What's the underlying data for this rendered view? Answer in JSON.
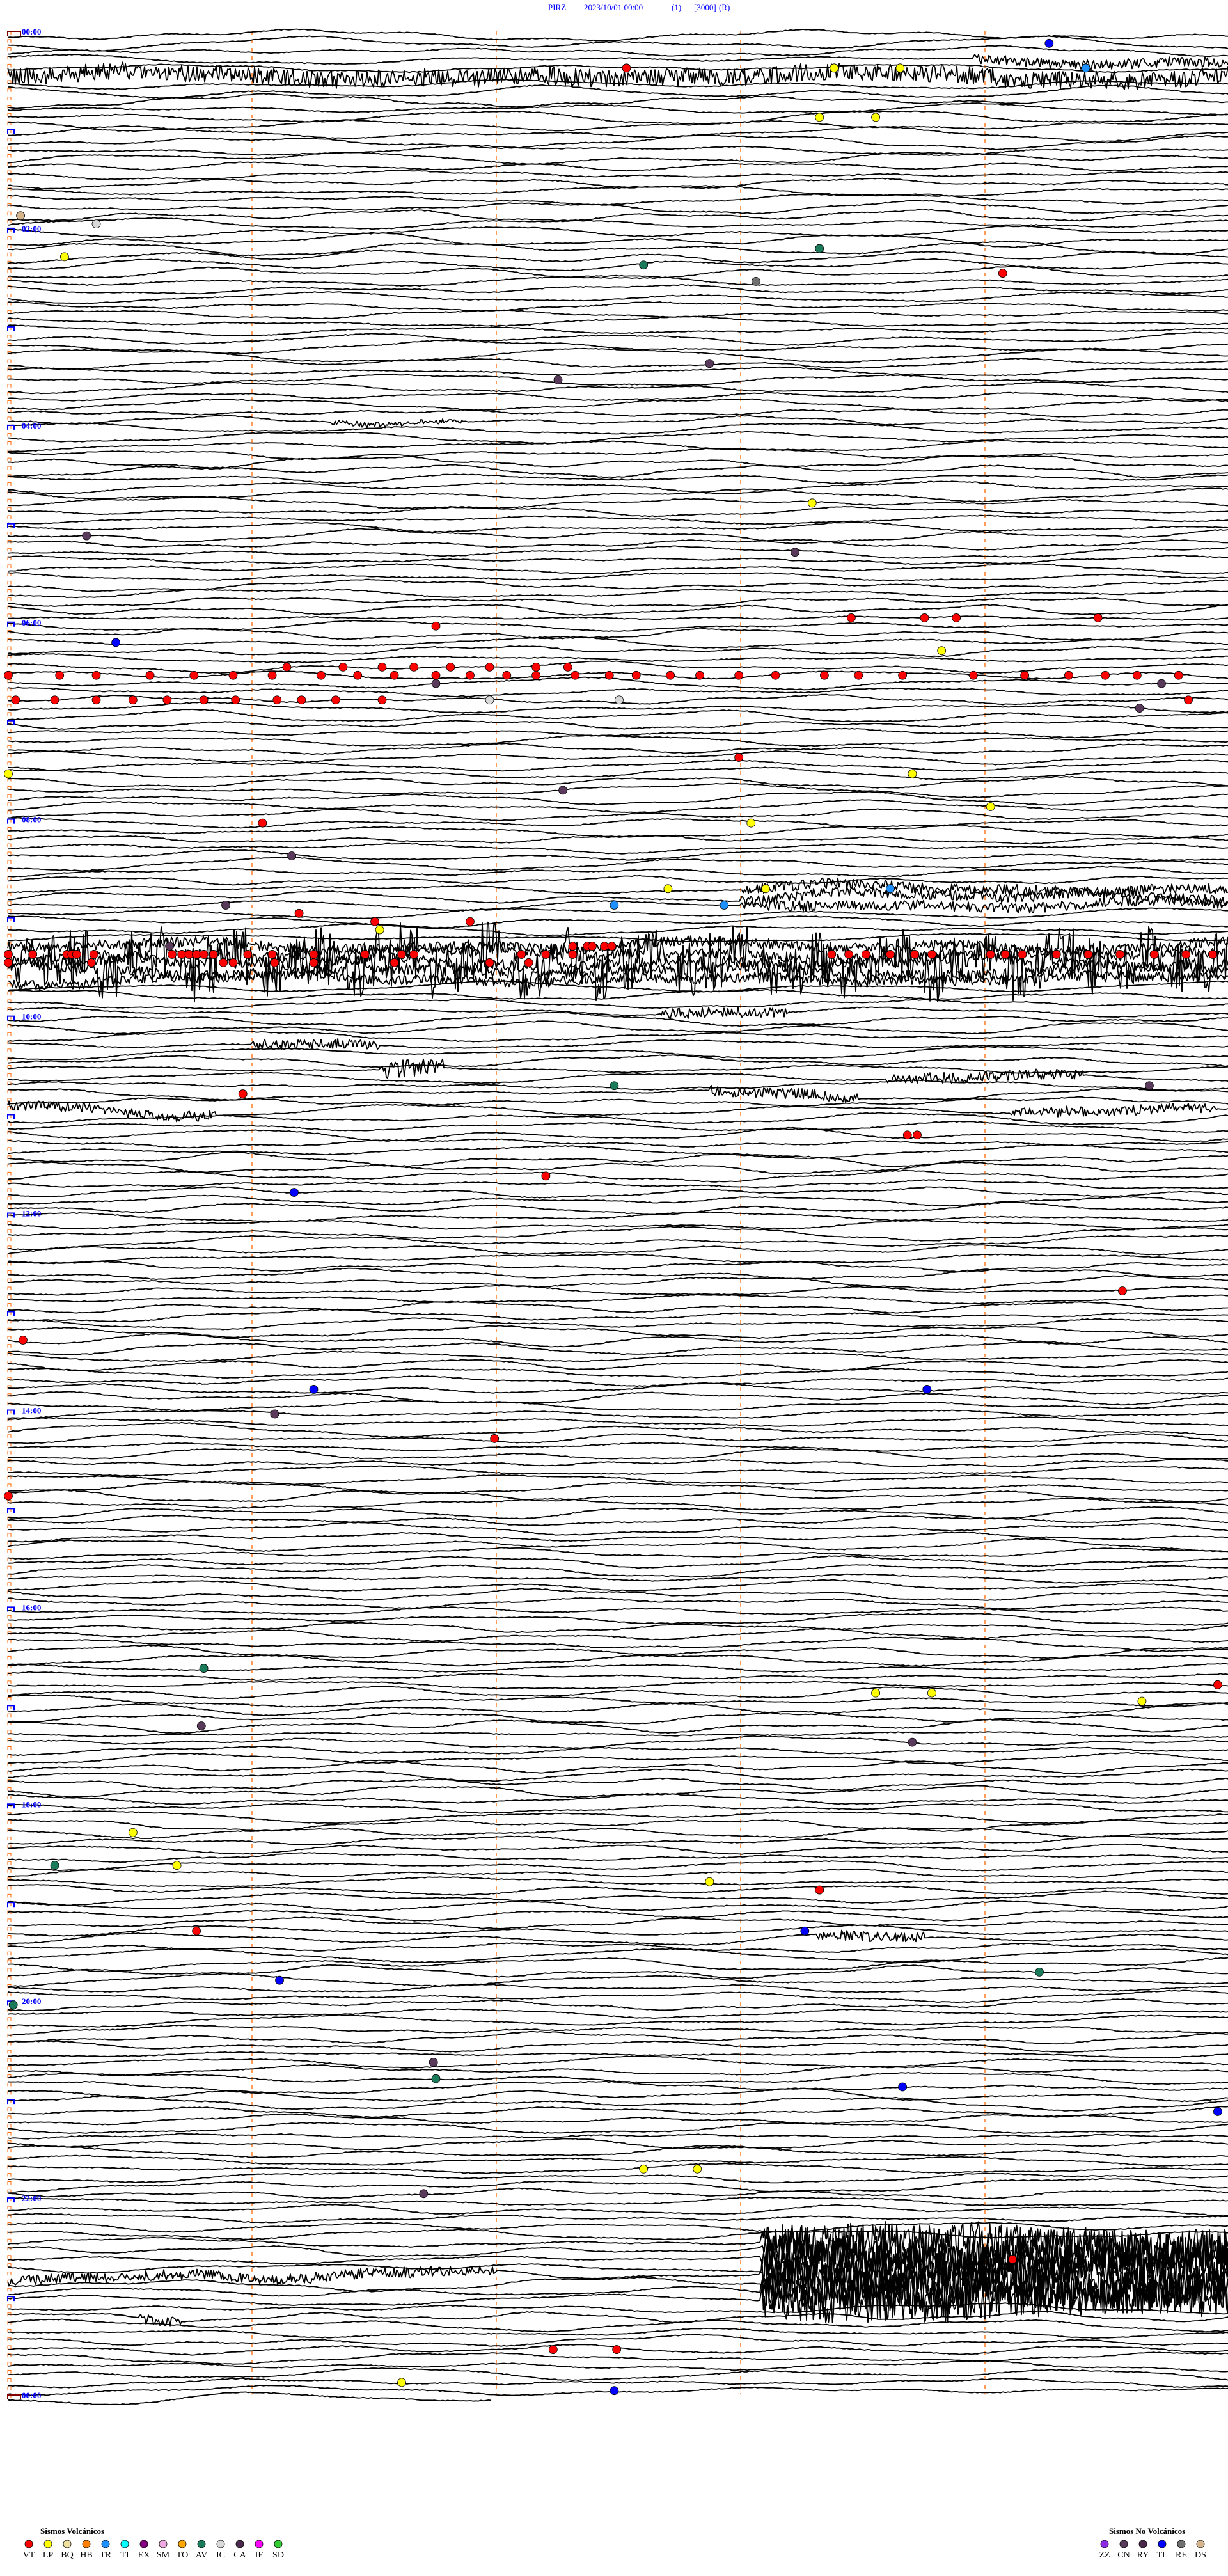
{
  "header": {
    "station": "PIRZ",
    "datetime": "2023/10/01 00:00",
    "channel": "(1)",
    "scale": "[3000]",
    "mode": "(R)"
  },
  "chart_data": {
    "type": "line",
    "kind": "helicorder",
    "minutes_per_row": 5,
    "x_range_minutes": [
      0,
      5
    ],
    "minute_gridlines": [
      1,
      2,
      3,
      4
    ],
    "last_row_end_minute": 1.98,
    "rows_per_hour": 12,
    "time_labels": [
      "00:00",
      "02:00",
      "04:00",
      "06:00",
      "08:00",
      "10:00",
      "12:00",
      "14:00",
      "16:00",
      "18:00",
      "20:00",
      "22:00",
      "00:00"
    ],
    "trace_color": "#000000",
    "gridline_color": "#ff6600",
    "label_color": "#0000ff",
    "high_amplitude_segments": [
      {
        "row": "00:25",
        "from_min": 0,
        "to_min": 5,
        "level": "high"
      },
      {
        "row": "00:15",
        "from_min": 3.95,
        "to_min": 5,
        "level": "medium"
      },
      {
        "row": "03:55",
        "from_min": 1.32,
        "to_min": 1.86,
        "level": "low"
      },
      {
        "row": "08:40",
        "from_min": 3.0,
        "to_min": 5,
        "level": "medium"
      },
      {
        "row": "08:45",
        "from_min": 3.0,
        "to_min": 5,
        "level": "medium"
      },
      {
        "row": "08:50",
        "from_min": 3.0,
        "to_min": 5,
        "level": "medium"
      },
      {
        "row": "09:15",
        "from_min": 0,
        "to_min": 5,
        "level": "medium"
      },
      {
        "row": "09:20",
        "from_min": 0,
        "to_min": 5,
        "level": "burst"
      },
      {
        "row": "09:25",
        "from_min": 0,
        "to_min": 5,
        "level": "burst"
      },
      {
        "row": "09:30",
        "from_min": 0,
        "to_min": 5,
        "level": "burst"
      },
      {
        "row": "09:35",
        "from_min": 0,
        "to_min": 5,
        "level": "medium"
      },
      {
        "row": "09:55",
        "from_min": 2.67,
        "to_min": 3.2,
        "level": "medium"
      },
      {
        "row": "10:15",
        "from_min": 1.0,
        "to_min": 1.52,
        "level": "medium"
      },
      {
        "row": "10:30",
        "from_min": 1.52,
        "to_min": 1.79,
        "level": "high"
      },
      {
        "row": "10:35",
        "from_min": 3.6,
        "to_min": 4.4,
        "level": "medium"
      },
      {
        "row": "10:45",
        "from_min": 2.87,
        "to_min": 3.48,
        "level": "medium"
      },
      {
        "row": "10:55",
        "from_min": 0,
        "to_min": 0.85,
        "level": "medium"
      },
      {
        "row": "10:55",
        "from_min": 4.1,
        "to_min": 4.95,
        "level": "medium"
      },
      {
        "row": "19:20",
        "from_min": 3.31,
        "to_min": 3.75,
        "level": "medium"
      },
      {
        "row": "22:25",
        "from_min": 3.08,
        "to_min": 5,
        "level": "extreme"
      },
      {
        "row": "22:30",
        "from_min": 3.08,
        "to_min": 5,
        "level": "extreme"
      },
      {
        "row": "22:35",
        "from_min": 3.08,
        "to_min": 5,
        "level": "extreme"
      },
      {
        "row": "22:40",
        "from_min": 3.08,
        "to_min": 5,
        "level": "extreme"
      },
      {
        "row": "22:45",
        "from_min": 0,
        "to_min": 2.0,
        "level": "medium"
      },
      {
        "row": "22:45",
        "from_min": 3.08,
        "to_min": 5,
        "level": "extreme"
      },
      {
        "row": "22:50",
        "from_min": 3.08,
        "to_min": 5,
        "level": "extreme"
      },
      {
        "row": "22:55",
        "from_min": 3.08,
        "to_min": 5,
        "level": "extreme"
      },
      {
        "row": "23:00",
        "from_min": 3.08,
        "to_min": 5,
        "level": "extreme"
      },
      {
        "row": "23:10",
        "from_min": 0.54,
        "to_min": 0.71,
        "level": "medium"
      }
    ],
    "events": [
      {
        "row": "00:05",
        "type": "TL",
        "minutes": [
          4.26
        ]
      },
      {
        "row": "00:20",
        "type": "VT",
        "minutes": [
          2.53
        ]
      },
      {
        "row": "00:20",
        "type": "LP",
        "minutes": [
          3.38,
          3.65
        ]
      },
      {
        "row": "00:20",
        "type": "TR",
        "minutes": [
          4.41
        ]
      },
      {
        "row": "00:50",
        "type": "LP",
        "minutes": [
          3.32,
          3.55
        ]
      },
      {
        "row": "01:50",
        "type": "DS",
        "minutes": [
          0.05
        ]
      },
      {
        "row": "01:55",
        "type": "IC",
        "minutes": [
          0.36
        ]
      },
      {
        "row": "02:10",
        "type": "AV",
        "minutes": [
          3.32
        ]
      },
      {
        "row": "02:15",
        "type": "LP",
        "minutes": [
          0.23
        ]
      },
      {
        "row": "02:20",
        "type": "AV",
        "minutes": [
          2.6
        ]
      },
      {
        "row": "02:25",
        "type": "VT",
        "minutes": [
          4.07
        ]
      },
      {
        "row": "02:30",
        "type": "RE",
        "minutes": [
          3.06
        ]
      },
      {
        "row": "03:20",
        "type": "CN",
        "minutes": [
          2.87
        ]
      },
      {
        "row": "03:30",
        "type": "CN",
        "minutes": [
          2.25
        ]
      },
      {
        "row": "04:45",
        "type": "LP",
        "minutes": [
          3.29
        ]
      },
      {
        "row": "05:05",
        "type": "CN",
        "minutes": [
          0.32
        ]
      },
      {
        "row": "05:15",
        "type": "CN",
        "minutes": [
          3.22
        ]
      },
      {
        "row": "05:55",
        "type": "VT",
        "minutes": [
          3.45,
          3.75,
          3.88,
          4.46
        ]
      },
      {
        "row": "06:00",
        "type": "VT",
        "minutes": [
          1.75
        ]
      },
      {
        "row": "06:10",
        "type": "TL",
        "minutes": [
          0.44
        ]
      },
      {
        "row": "06:15",
        "type": "LP",
        "minutes": [
          3.82
        ]
      },
      {
        "row": "06:25",
        "type": "VT",
        "minutes": [
          1.14,
          1.37,
          1.53,
          1.66,
          1.81,
          1.97,
          2.16,
          2.29
        ]
      },
      {
        "row": "06:30",
        "type": "VT",
        "minutes": [
          0.0,
          0.21,
          0.36,
          0.58,
          0.76,
          0.92,
          1.08,
          1.28,
          1.43,
          1.58,
          1.75,
          1.89,
          2.04,
          2.16,
          2.32,
          2.46,
          2.57,
          2.71,
          2.83,
          2.99,
          3.14,
          3.34,
          3.48,
          3.66,
          3.95,
          4.16,
          4.34,
          4.49,
          4.62,
          4.79
        ]
      },
      {
        "row": "06:35",
        "type": "CN",
        "minutes": [
          1.75,
          4.72
        ]
      },
      {
        "row": "06:45",
        "type": "VT",
        "minutes": [
          0.03,
          0.19,
          0.36,
          0.51,
          0.65,
          0.8,
          0.93,
          1.1,
          1.2,
          1.34,
          1.53,
          4.83
        ]
      },
      {
        "row": "06:45",
        "type": "IC",
        "minutes": [
          1.97,
          2.5
        ]
      },
      {
        "row": "06:50",
        "type": "CN",
        "minutes": [
          4.63
        ]
      },
      {
        "row": "07:20",
        "type": "VT",
        "minutes": [
          2.99
        ]
      },
      {
        "row": "07:30",
        "type": "LP",
        "minutes": [
          0.0,
          3.7
        ]
      },
      {
        "row": "07:40",
        "type": "CN",
        "minutes": [
          2.27
        ]
      },
      {
        "row": "07:50",
        "type": "LP",
        "minutes": [
          4.02
        ]
      },
      {
        "row": "08:00",
        "type": "VT",
        "minutes": [
          1.04
        ]
      },
      {
        "row": "08:00",
        "type": "LP",
        "minutes": [
          3.04
        ]
      },
      {
        "row": "08:20",
        "type": "CN",
        "minutes": [
          1.16
        ]
      },
      {
        "row": "08:40",
        "type": "LP",
        "minutes": [
          2.7,
          3.1
        ]
      },
      {
        "row": "08:40",
        "type": "TR",
        "minutes": [
          3.61
        ]
      },
      {
        "row": "08:50",
        "type": "TR",
        "minutes": [
          2.48,
          2.93
        ]
      },
      {
        "row": "08:50",
        "type": "CN",
        "minutes": [
          0.89
        ]
      },
      {
        "row": "08:55",
        "type": "VT",
        "minutes": [
          1.19
        ]
      },
      {
        "row": "09:00",
        "type": "VT",
        "minutes": [
          1.5,
          1.89
        ]
      },
      {
        "row": "09:05",
        "type": "LP",
        "minutes": [
          1.52
        ]
      },
      {
        "row": "09:15",
        "type": "VT",
        "minutes": [
          2.31,
          2.37,
          2.39,
          2.44,
          2.47
        ]
      },
      {
        "row": "09:15",
        "type": "CN",
        "minutes": [
          0.66
        ]
      },
      {
        "row": "09:20",
        "type": "VT",
        "minutes": [
          0.0,
          0.1,
          0.24,
          0.26,
          0.28,
          0.35,
          0.67,
          0.71,
          0.74,
          0.77,
          0.8,
          0.84,
          0.98,
          1.08,
          1.25,
          1.46,
          1.61,
          1.66,
          2.1,
          2.2,
          2.31,
          3.37,
          3.44,
          3.51,
          3.61,
          3.71,
          3.78,
          4.02,
          4.08,
          4.15,
          4.29,
          4.42,
          4.55,
          4.69,
          4.82,
          4.93
        ]
      },
      {
        "row": "09:25",
        "type": "VT",
        "minutes": [
          0.0,
          0.34,
          0.88,
          0.92,
          1.09,
          1.25,
          1.58,
          1.97,
          2.13
        ]
      },
      {
        "row": "10:40",
        "type": "CN",
        "minutes": [
          4.67
        ]
      },
      {
        "row": "10:40",
        "type": "AV",
        "minutes": [
          2.48
        ]
      },
      {
        "row": "10:45",
        "type": "VT",
        "minutes": [
          0.96
        ]
      },
      {
        "row": "11:10",
        "type": "VT",
        "minutes": [
          3.68,
          3.72
        ]
      },
      {
        "row": "11:35",
        "type": "VT",
        "minutes": [
          2.2
        ]
      },
      {
        "row": "11:45",
        "type": "TL",
        "minutes": [
          1.17
        ]
      },
      {
        "row": "12:45",
        "type": "VT",
        "minutes": [
          4.56
        ]
      },
      {
        "row": "13:15",
        "type": "VT",
        "minutes": [
          0.06
        ]
      },
      {
        "row": "13:45",
        "type": "TL",
        "minutes": [
          1.25,
          3.76
        ]
      },
      {
        "row": "14:00",
        "type": "CN",
        "minutes": [
          1.09
        ]
      },
      {
        "row": "14:15",
        "type": "VT",
        "minutes": [
          1.99
        ]
      },
      {
        "row": "14:50",
        "type": "VT",
        "minutes": [
          0.0
        ]
      },
      {
        "row": "16:35",
        "type": "AV",
        "minutes": [
          0.8
        ]
      },
      {
        "row": "16:45",
        "type": "VT",
        "minutes": [
          4.95
        ]
      },
      {
        "row": "16:50",
        "type": "LP",
        "minutes": [
          3.55,
          3.78
        ]
      },
      {
        "row": "16:55",
        "type": "LP",
        "minutes": [
          4.64
        ]
      },
      {
        "row": "17:10",
        "type": "CN",
        "minutes": [
          0.79
        ]
      },
      {
        "row": "17:20",
        "type": "CN",
        "minutes": [
          3.7
        ]
      },
      {
        "row": "18:15",
        "type": "LP",
        "minutes": [
          0.51
        ]
      },
      {
        "row": "18:35",
        "type": "AV",
        "minutes": [
          0.19
        ]
      },
      {
        "row": "18:35",
        "type": "LP",
        "minutes": [
          0.69
        ]
      },
      {
        "row": "18:45",
        "type": "LP",
        "minutes": [
          2.87
        ]
      },
      {
        "row": "18:50",
        "type": "VT",
        "minutes": [
          3.32
        ]
      },
      {
        "row": "19:15",
        "type": "VT",
        "minutes": [
          0.77
        ]
      },
      {
        "row": "19:15",
        "type": "TL",
        "minutes": [
          3.26
        ]
      },
      {
        "row": "19:40",
        "type": "AV",
        "minutes": [
          4.22
        ]
      },
      {
        "row": "19:45",
        "type": "TL",
        "minutes": [
          1.11
        ]
      },
      {
        "row": "20:00",
        "type": "AV",
        "minutes": [
          0.02
        ]
      },
      {
        "row": "20:35",
        "type": "CN",
        "minutes": [
          1.74
        ]
      },
      {
        "row": "20:45",
        "type": "AV",
        "minutes": [
          1.75
        ]
      },
      {
        "row": "20:50",
        "type": "TL",
        "minutes": [
          3.66
        ]
      },
      {
        "row": "21:05",
        "type": "TL",
        "minutes": [
          4.95
        ]
      },
      {
        "row": "21:40",
        "type": "LP",
        "minutes": [
          2.6,
          2.82
        ]
      },
      {
        "row": "21:55",
        "type": "CN",
        "minutes": [
          1.7
        ]
      },
      {
        "row": "22:35",
        "type": "VT",
        "minutes": [
          4.11
        ]
      },
      {
        "row": "23:30",
        "type": "VT",
        "minutes": [
          2.23,
          2.49
        ]
      },
      {
        "row": "23:50",
        "type": "LP",
        "minutes": [
          1.61
        ]
      },
      {
        "row": "23:55",
        "type": "TL",
        "minutes": [
          2.48
        ]
      }
    ]
  },
  "legend": {
    "volcanic_title": "Sismos Volcánicos",
    "volcanic": [
      {
        "code": "VT",
        "color": "#ff0000"
      },
      {
        "code": "LP",
        "color": "#ffff00"
      },
      {
        "code": "BQ",
        "color": "#f0e0a0"
      },
      {
        "code": "HB",
        "color": "#ff8000"
      },
      {
        "code": "TR",
        "color": "#1e90ff"
      },
      {
        "code": "TI",
        "color": "#00ffff"
      },
      {
        "code": "EX",
        "color": "#800080"
      },
      {
        "code": "SM",
        "color": "#f0a8e0"
      },
      {
        "code": "TO",
        "color": "#ffa500"
      },
      {
        "code": "AV",
        "color": "#1a7a5a"
      },
      {
        "code": "IC",
        "color": "#d8d8d8"
      },
      {
        "code": "CA",
        "color": "#4a2a4a"
      },
      {
        "code": "IF",
        "color": "#ff00ff"
      },
      {
        "code": "SD",
        "color": "#33cc33"
      }
    ],
    "non_volcanic_title": "Sismos No Volcánicos",
    "non_volcanic": [
      {
        "code": "ZZ",
        "color": "#8a2be2"
      },
      {
        "code": "CN",
        "color": "#5a3a5a"
      },
      {
        "code": "RY",
        "color": "#4a2a4a"
      },
      {
        "code": "TL",
        "color": "#0000ff"
      },
      {
        "code": "RE",
        "color": "#707070"
      },
      {
        "code": "DS",
        "color": "#d4b48c"
      }
    ]
  }
}
